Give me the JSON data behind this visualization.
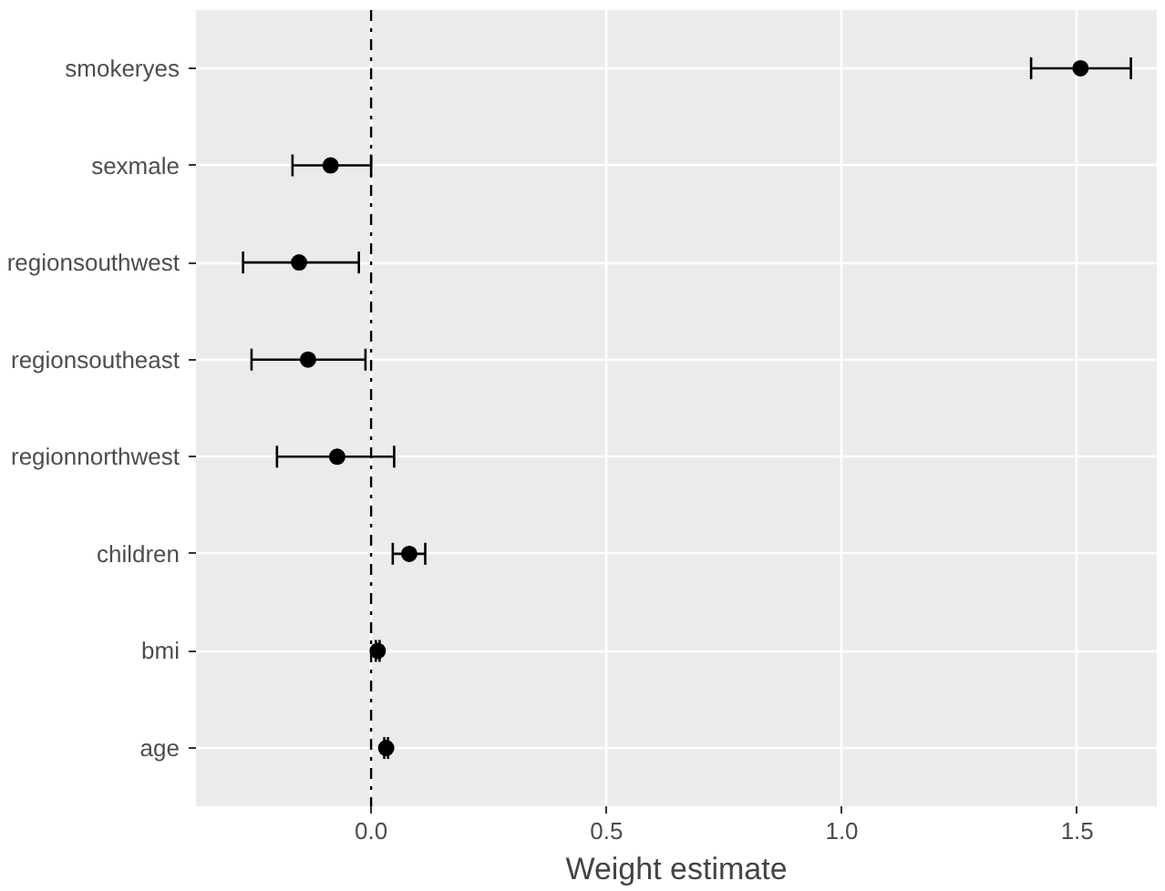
{
  "chart_data": {
    "type": "scatter",
    "orientation": "horizontal",
    "xlabel": "Weight estimate",
    "categories": [
      "smokeryes",
      "sexmale",
      "regionsouthwest",
      "regionsoutheast",
      "regionnorthwest",
      "children",
      "bmi",
      "age"
    ],
    "values": [
      1.507,
      -0.086,
      -0.153,
      -0.134,
      -0.072,
      0.081,
      0.014,
      0.032
    ],
    "errors": [
      [
        1.402,
        1.614
      ],
      [
        -0.167,
        0.0
      ],
      [
        -0.272,
        -0.026
      ],
      [
        -0.254,
        -0.012
      ],
      [
        -0.2,
        0.049
      ],
      [
        0.046,
        0.115
      ],
      [
        0.01,
        0.018
      ],
      [
        0.028,
        0.036
      ]
    ],
    "color": "#000000",
    "marker": "circle",
    "xlim": [
      -0.372,
      1.669
    ],
    "xticks": [
      {
        "value": 0,
        "label": "0.0"
      },
      0.5,
      {
        "value": 1,
        "label": "1.0"
      },
      1.5
    ],
    "ref_lines": [
      {
        "axis": "x",
        "value": 0,
        "line_style": "dashdot",
        "color": "#000000"
      }
    ],
    "grid": true
  }
}
